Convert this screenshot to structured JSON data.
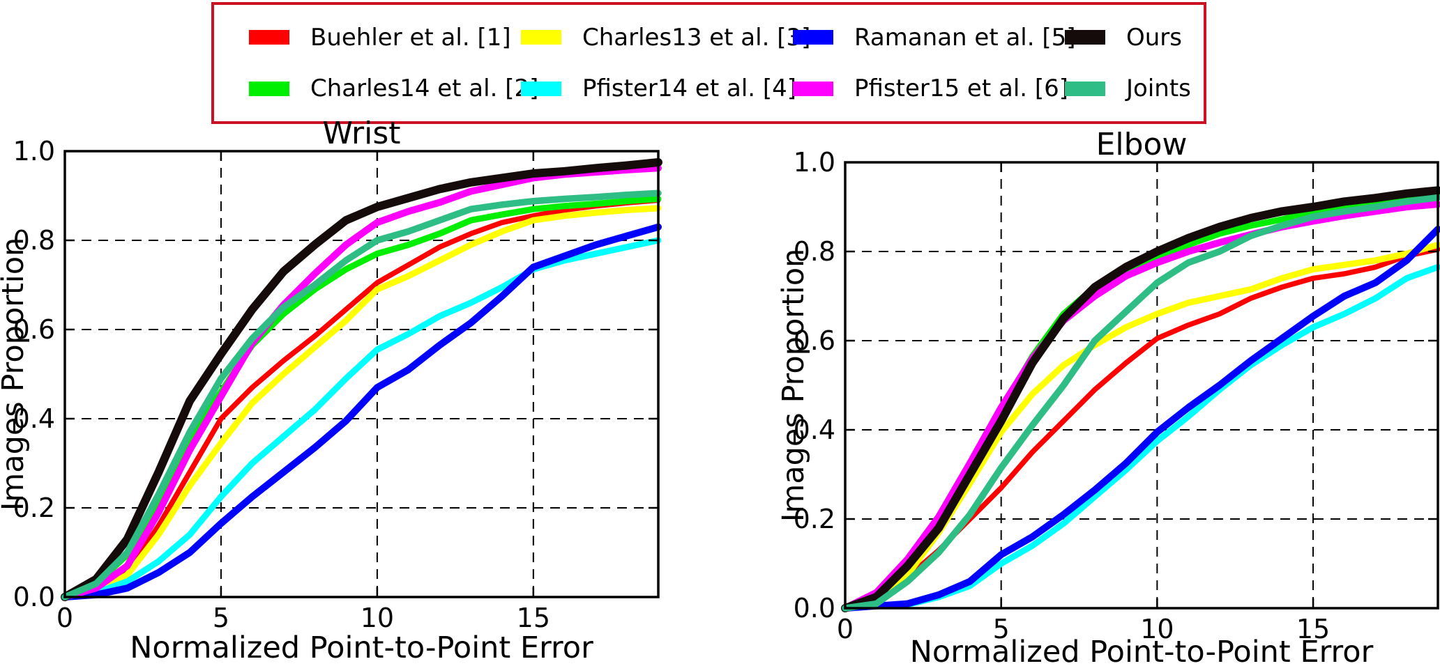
{
  "figure": {
    "background": "#ffffff",
    "legend": {
      "border_color": "#cc1122",
      "entries": [
        {
          "label": "Buehler et al. [1]",
          "color": "#ff0000"
        },
        {
          "label": "Charles13 et al. [3]",
          "color": "#ffff00"
        },
        {
          "label": "Ramanan et al. [5]",
          "color": "#0000ff"
        },
        {
          "label": "Ours",
          "color": "#150b0b"
        },
        {
          "label": "Charles14 et al. [2]",
          "color": "#00ee00"
        },
        {
          "label": "Pfister14 et al. [4]",
          "color": "#00ffff"
        },
        {
          "label": "Pfister15 et al. [6]",
          "color": "#ff00ff"
        },
        {
          "label": "Joints",
          "color": "#2ebd85"
        }
      ]
    }
  },
  "chart_data": [
    {
      "id": "wrist",
      "type": "line",
      "title": "Wrist",
      "xlabel": "Normalized Point-to-Point Error",
      "ylabel": "Images Proportion",
      "xlim": [
        0,
        19
      ],
      "ylim": [
        0,
        1
      ],
      "xticks": [
        0,
        5,
        10,
        15
      ],
      "xticklabels": [
        "0",
        "5",
        "10",
        "15"
      ],
      "yticks": [
        0.0,
        0.2,
        0.4,
        0.6,
        0.8,
        1.0
      ],
      "yticklabels": [
        "0.0",
        "0.2",
        "0.4",
        "0.6",
        "0.8",
        "1.0"
      ],
      "grid": "dashed",
      "x": [
        0,
        1,
        2,
        3,
        4,
        5,
        6,
        7,
        8,
        9,
        10,
        11,
        12,
        13,
        14,
        15,
        16,
        17,
        18,
        19
      ],
      "series": [
        {
          "name": "Buehler et al. [1]",
          "color": "#ff0000",
          "width": 7.5,
          "values": [
            0,
            0.01,
            0.055,
            0.16,
            0.28,
            0.4,
            0.47,
            0.53,
            0.585,
            0.645,
            0.705,
            0.745,
            0.785,
            0.815,
            0.84,
            0.855,
            0.868,
            0.877,
            0.884,
            0.89
          ]
        },
        {
          "name": "Charles14 et al. [2]",
          "color": "#00ee00",
          "width": 9,
          "values": [
            0,
            0.03,
            0.095,
            0.215,
            0.355,
            0.46,
            0.565,
            0.635,
            0.69,
            0.735,
            0.77,
            0.79,
            0.815,
            0.845,
            0.858,
            0.87,
            0.877,
            0.882,
            0.888,
            0.893
          ]
        },
        {
          "name": "Charles13 et al. [3]",
          "color": "#ffff00",
          "width": 9,
          "values": [
            0,
            0.01,
            0.05,
            0.14,
            0.25,
            0.345,
            0.435,
            0.5,
            0.56,
            0.62,
            0.69,
            0.72,
            0.755,
            0.79,
            0.82,
            0.845,
            0.855,
            0.862,
            0.868,
            0.872
          ]
        },
        {
          "name": "Pfister14 et al. [4]",
          "color": "#00ffff",
          "width": 9,
          "values": [
            0,
            0.01,
            0.035,
            0.08,
            0.14,
            0.225,
            0.3,
            0.36,
            0.42,
            0.49,
            0.555,
            0.59,
            0.63,
            0.66,
            0.695,
            0.735,
            0.755,
            0.77,
            0.785,
            0.8
          ]
        },
        {
          "name": "Ramanan et al. [5]",
          "color": "#0000ff",
          "width": 10,
          "values": [
            0,
            0.005,
            0.02,
            0.055,
            0.1,
            0.165,
            0.225,
            0.28,
            0.335,
            0.395,
            0.47,
            0.51,
            0.565,
            0.615,
            0.675,
            0.74,
            0.765,
            0.79,
            0.81,
            0.83
          ]
        },
        {
          "name": "Pfister15 et al. [6]",
          "color": "#ff00ff",
          "width": 10,
          "values": [
            0,
            0.02,
            0.07,
            0.19,
            0.33,
            0.45,
            0.57,
            0.655,
            0.725,
            0.79,
            0.84,
            0.865,
            0.885,
            0.91,
            0.925,
            0.94,
            0.948,
            0.953,
            0.958,
            0.962
          ]
        },
        {
          "name": "Ours",
          "color": "#150b0b",
          "width": 12,
          "values": [
            0,
            0.04,
            0.13,
            0.28,
            0.44,
            0.545,
            0.645,
            0.73,
            0.79,
            0.845,
            0.875,
            0.895,
            0.915,
            0.93,
            0.94,
            0.95,
            0.955,
            0.962,
            0.968,
            0.975
          ]
        },
        {
          "name": "Joints",
          "color": "#2ebd85",
          "width": 9.5,
          "values": [
            0,
            0.03,
            0.1,
            0.23,
            0.37,
            0.49,
            0.58,
            0.65,
            0.7,
            0.755,
            0.8,
            0.82,
            0.845,
            0.87,
            0.88,
            0.888,
            0.893,
            0.897,
            0.902,
            0.906
          ]
        }
      ]
    },
    {
      "id": "elbow",
      "type": "line",
      "title": "Elbow",
      "xlabel": "Normalized Point-to-Point Error",
      "ylabel": "Images Proportion",
      "xlim": [
        0,
        19
      ],
      "ylim": [
        0,
        1
      ],
      "xticks": [
        0,
        5,
        10,
        15
      ],
      "xticklabels": [
        "0",
        "5",
        "10",
        "15"
      ],
      "yticks": [
        0.0,
        0.2,
        0.4,
        0.6,
        0.8,
        1.0
      ],
      "yticklabels": [
        "0.0",
        "0.2",
        "0.4",
        "0.6",
        "0.8",
        "1.0"
      ],
      "grid": "dashed",
      "x": [
        0,
        1,
        2,
        3,
        4,
        5,
        6,
        7,
        8,
        9,
        10,
        11,
        12,
        13,
        14,
        15,
        16,
        17,
        18,
        19
      ],
      "series": [
        {
          "name": "Buehler et al. [1]",
          "color": "#ff0000",
          "width": 7.5,
          "values": [
            0,
            0.01,
            0.07,
            0.13,
            0.2,
            0.27,
            0.35,
            0.42,
            0.49,
            0.55,
            0.605,
            0.635,
            0.66,
            0.695,
            0.72,
            0.74,
            0.75,
            0.765,
            0.79,
            0.805
          ]
        },
        {
          "name": "Charles14 et al. [2]",
          "color": "#00ee00",
          "width": 9,
          "values": [
            0,
            0.025,
            0.105,
            0.2,
            0.3,
            0.445,
            0.565,
            0.66,
            0.72,
            0.755,
            0.79,
            0.815,
            0.84,
            0.858,
            0.872,
            0.888,
            0.9,
            0.91,
            0.918,
            0.924
          ]
        },
        {
          "name": "Charles13 et al. [3]",
          "color": "#ffff00",
          "width": 9,
          "values": [
            0,
            0.015,
            0.075,
            0.17,
            0.28,
            0.395,
            0.48,
            0.545,
            0.59,
            0.63,
            0.66,
            0.685,
            0.7,
            0.715,
            0.74,
            0.76,
            0.77,
            0.78,
            0.795,
            0.815
          ]
        },
        {
          "name": "Pfister14 et al. [4]",
          "color": "#00ffff",
          "width": 9,
          "values": [
            0,
            0.005,
            0.008,
            0.025,
            0.05,
            0.1,
            0.14,
            0.19,
            0.25,
            0.31,
            0.375,
            0.43,
            0.49,
            0.545,
            0.59,
            0.63,
            0.66,
            0.695,
            0.74,
            0.765
          ]
        },
        {
          "name": "Ramanan et al. [5]",
          "color": "#0000ff",
          "width": 10,
          "values": [
            0,
            0.005,
            0.01,
            0.03,
            0.06,
            0.12,
            0.16,
            0.21,
            0.265,
            0.325,
            0.395,
            0.45,
            0.5,
            0.555,
            0.605,
            0.655,
            0.7,
            0.73,
            0.78,
            0.85
          ]
        },
        {
          "name": "Pfister15 et al. [6]",
          "color": "#ff00ff",
          "width": 10,
          "values": [
            0,
            0.035,
            0.11,
            0.205,
            0.325,
            0.45,
            0.56,
            0.645,
            0.7,
            0.745,
            0.775,
            0.8,
            0.82,
            0.838,
            0.855,
            0.868,
            0.88,
            0.89,
            0.9,
            0.906
          ]
        },
        {
          "name": "Ours",
          "color": "#150b0b",
          "width": 12,
          "values": [
            0,
            0.025,
            0.095,
            0.18,
            0.3,
            0.42,
            0.55,
            0.65,
            0.72,
            0.765,
            0.8,
            0.83,
            0.855,
            0.875,
            0.89,
            0.9,
            0.912,
            0.92,
            0.93,
            0.937
          ]
        },
        {
          "name": "Joints",
          "color": "#2ebd85",
          "width": 9.5,
          "values": [
            0,
            0.01,
            0.06,
            0.125,
            0.21,
            0.315,
            0.41,
            0.5,
            0.6,
            0.665,
            0.73,
            0.775,
            0.8,
            0.835,
            0.858,
            0.878,
            0.89,
            0.9,
            0.912,
            0.921
          ]
        }
      ]
    }
  ]
}
